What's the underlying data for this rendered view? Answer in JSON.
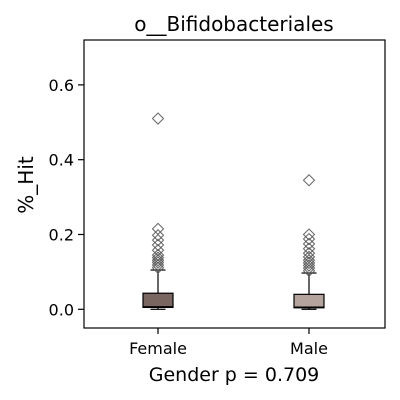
{
  "chart_data": {
    "type": "box",
    "title": "o__Bifidobacteriales",
    "ylabel": "%_Hit",
    "xlabel": "Gender p = 0.709",
    "ylim": [
      -0.05,
      0.72
    ],
    "yticks": [
      "0.0",
      "0.2",
      "0.4",
      "0.6"
    ],
    "ytick_values": [
      0.0,
      0.2,
      0.4,
      0.6
    ],
    "categories": [
      "Female",
      "Male"
    ],
    "boxes": [
      {
        "category": "Female",
        "color": "#7a6661",
        "q1": 0.005,
        "median": 0.007,
        "q3": 0.043,
        "whisker_low": 0.0,
        "whisker_high": 0.105,
        "outliers": [
          0.111,
          0.118,
          0.125,
          0.131,
          0.138,
          0.145,
          0.158,
          0.172,
          0.185,
          0.198,
          0.215,
          0.51
        ]
      },
      {
        "category": "Male",
        "color": "#b4a49d",
        "q1": 0.004,
        "median": 0.006,
        "q3": 0.04,
        "whisker_low": 0.0,
        "whisker_high": 0.097,
        "outliers": [
          0.103,
          0.11,
          0.117,
          0.124,
          0.131,
          0.14,
          0.15,
          0.162,
          0.175,
          0.188,
          0.2,
          0.345
        ]
      }
    ]
  }
}
